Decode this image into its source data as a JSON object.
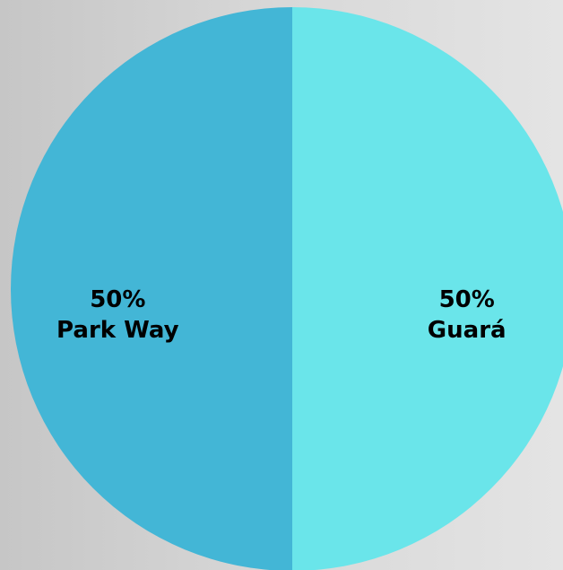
{
  "chart_data": {
    "type": "pie",
    "title": "",
    "slices": [
      {
        "label": "Guará",
        "value": 50,
        "value_label": "50%",
        "color": "#6ae5ea"
      },
      {
        "label": "Park Way",
        "value": 50,
        "value_label": "50%",
        "color": "#43b6d6"
      }
    ],
    "start": "12 o'clock",
    "direction": "clockwise",
    "legend": "none",
    "background": "#d6d6d6"
  }
}
